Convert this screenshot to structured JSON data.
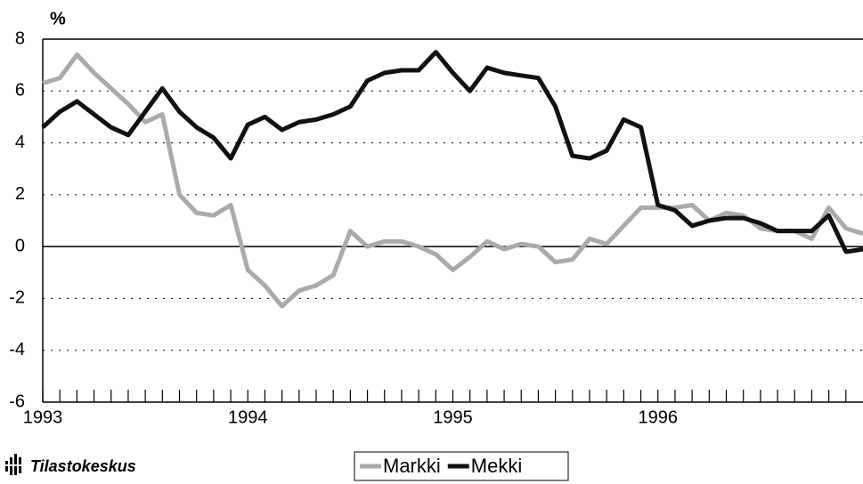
{
  "chart_data": {
    "type": "line",
    "y_label": "%",
    "source": "Tilastokeskus",
    "x": [
      1993,
      1993.083,
      1993.167,
      1993.25,
      1993.333,
      1993.417,
      1993.5,
      1993.583,
      1993.667,
      1993.75,
      1993.833,
      1993.917,
      1994,
      1994.083,
      1994.167,
      1994.25,
      1994.333,
      1994.417,
      1994.5,
      1994.583,
      1994.667,
      1994.75,
      1994.833,
      1994.917,
      1995,
      1995.083,
      1995.167,
      1995.25,
      1995.333,
      1995.417,
      1995.5,
      1995.583,
      1995.667,
      1995.75,
      1995.833,
      1995.917,
      1996,
      1996.083,
      1996.167,
      1996.25,
      1996.333,
      1996.417,
      1996.5,
      1996.583,
      1996.667,
      1996.75,
      1996.833,
      1996.917,
      1997
    ],
    "series": [
      {
        "name": "Markki",
        "color": "#aaaaaa",
        "values": [
          6.3,
          6.5,
          7.4,
          6.7,
          6.1,
          5.5,
          4.8,
          5.1,
          2.0,
          1.3,
          1.2,
          1.6,
          -0.9,
          -1.5,
          -2.3,
          -1.7,
          -1.5,
          -1.1,
          0.6,
          0,
          0.2,
          0.2,
          0,
          -0.3,
          -0.9,
          -0.4,
          0.2,
          -0.1,
          0.1,
          0,
          -0.6,
          -0.5,
          0.3,
          0.1,
          0.8,
          1.5,
          1.5,
          1.5,
          1.6,
          1.0,
          1.3,
          1.2,
          0.7,
          0.6,
          0.6,
          0.3,
          1.5,
          0.7,
          0.5
        ]
      },
      {
        "name": "Mekki",
        "color": "#111111",
        "values": [
          4.6,
          5.2,
          5.6,
          5.1,
          4.6,
          4.3,
          5.2,
          6.1,
          5.2,
          4.6,
          4.2,
          3.4,
          4.7,
          5.0,
          4.5,
          4.8,
          4.9,
          5.1,
          5.4,
          6.4,
          6.7,
          6.8,
          6.8,
          7.5,
          6.7,
          6.0,
          6.9,
          6.7,
          6.6,
          6.5,
          5.4,
          3.5,
          3.4,
          3.7,
          4.9,
          4.6,
          1.6,
          1.4,
          0.8,
          1.0,
          1.1,
          1.1,
          0.9,
          0.6,
          0.6,
          0.6,
          1.2,
          -0.2,
          -0.1
        ]
      }
    ],
    "xlim": [
      1993,
      1997
    ],
    "xticks": [
      1993,
      1994,
      1995,
      1996
    ],
    "ylim": [
      -6,
      8
    ],
    "yticks": [
      -6,
      -4,
      -2,
      0,
      2,
      4,
      6,
      8
    ],
    "grid": true,
    "legend": "bottom"
  }
}
